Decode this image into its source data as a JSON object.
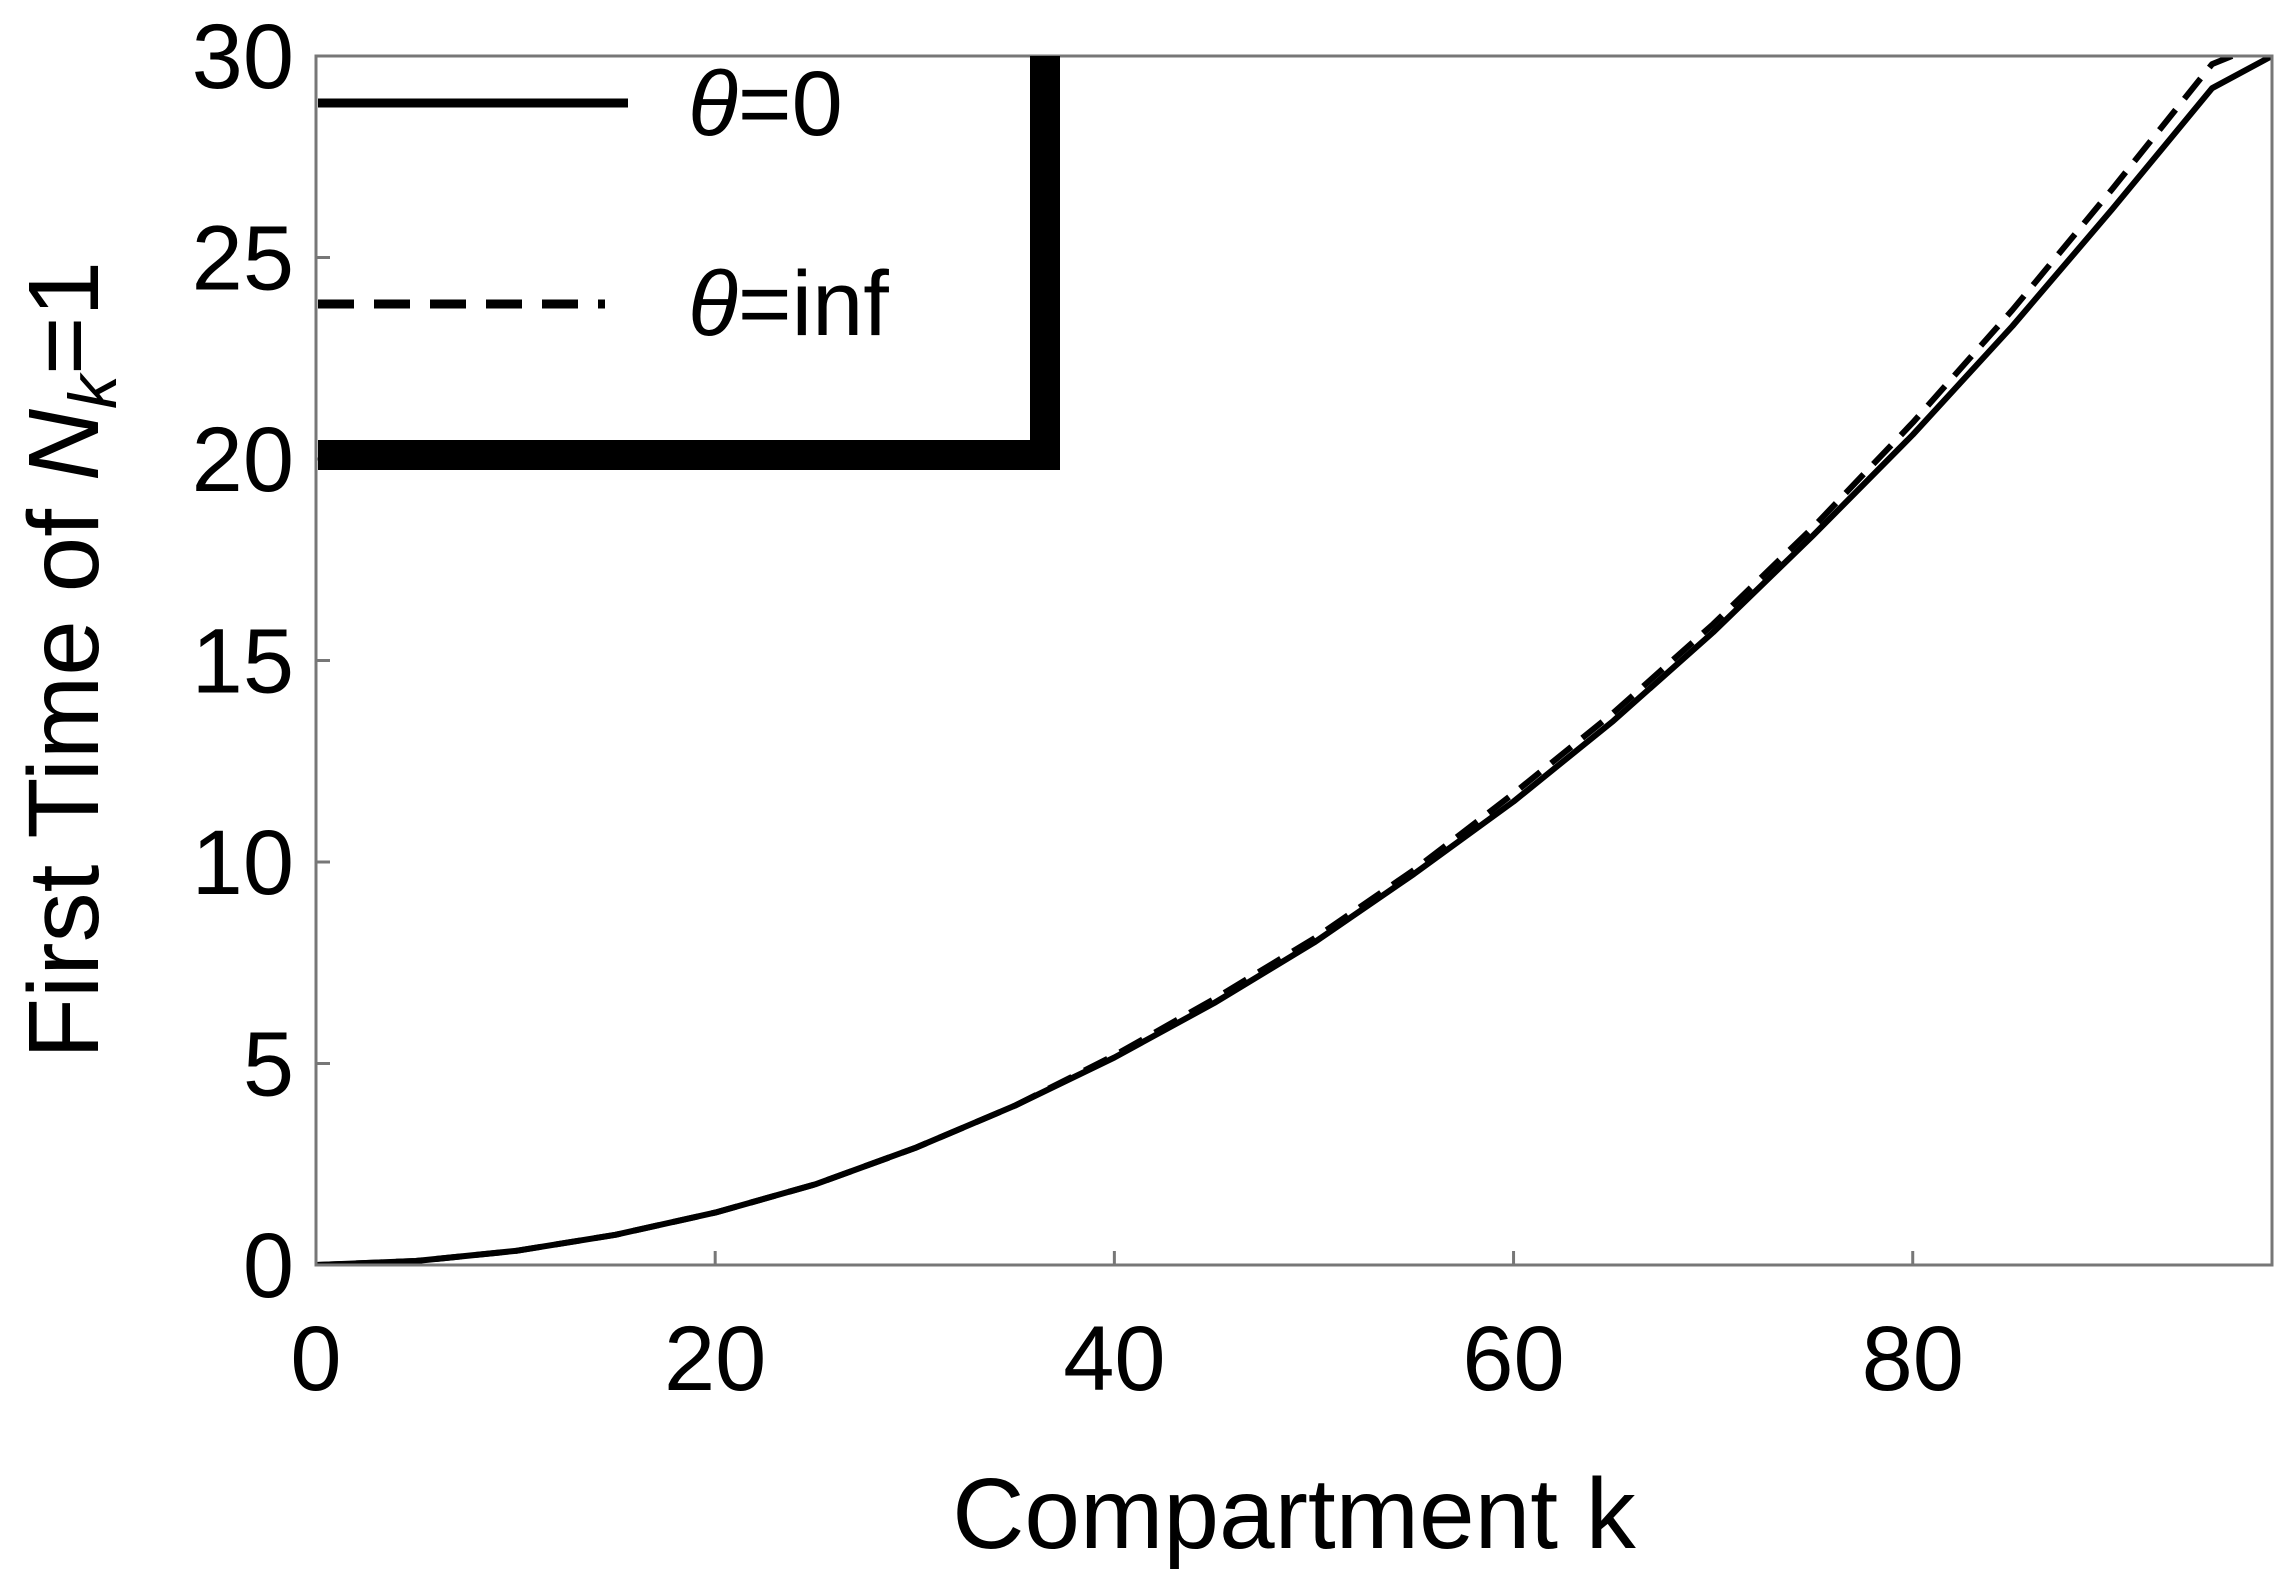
{
  "chart_data": {
    "type": "line",
    "title": "",
    "xlabel": "Compartment k",
    "ylabel": {
      "prefix": "First Time of ",
      "var": "N",
      "sub": "k",
      "suffix": "=1"
    },
    "xlim": [
      0,
      98
    ],
    "ylim": [
      0,
      30
    ],
    "xticks": [
      0,
      20,
      40,
      60,
      80
    ],
    "yticks": [
      0,
      5,
      10,
      15,
      20,
      25,
      30
    ],
    "grid": false,
    "legend": {
      "placement": "top-left",
      "entries": [
        {
          "symbol": "θ",
          "text": "=0"
        },
        {
          "symbol": "θ",
          "text": "=inf"
        }
      ]
    },
    "series": [
      {
        "name": "θ=0",
        "style": "solid",
        "x": [
          0,
          5,
          10,
          15,
          20,
          25,
          30,
          35,
          40,
          45,
          50,
          55,
          60,
          65,
          70,
          75,
          80,
          85,
          90,
          95,
          98
        ],
        "y": [
          0,
          0.1,
          0.35,
          0.75,
          1.3,
          2.0,
          2.9,
          3.95,
          5.15,
          6.5,
          8.0,
          9.7,
          11.5,
          13.5,
          15.7,
          18.1,
          20.6,
          23.3,
          26.2,
          29.2,
          30.0
        ]
      },
      {
        "name": "θ=inf",
        "style": "dashed",
        "x": [
          0,
          5,
          10,
          15,
          20,
          25,
          30,
          35,
          40,
          45,
          50,
          55,
          60,
          65,
          70,
          75,
          80,
          85,
          90,
          95,
          98
        ],
        "y": [
          0,
          0.1,
          0.35,
          0.75,
          1.3,
          2.0,
          2.9,
          3.95,
          5.2,
          6.6,
          8.1,
          9.8,
          11.7,
          13.7,
          15.9,
          18.3,
          20.9,
          23.7,
          26.7,
          29.8,
          30.4
        ]
      }
    ]
  },
  "colors": {
    "line": "#000000",
    "frame": "#777777",
    "background": "#ffffff"
  }
}
